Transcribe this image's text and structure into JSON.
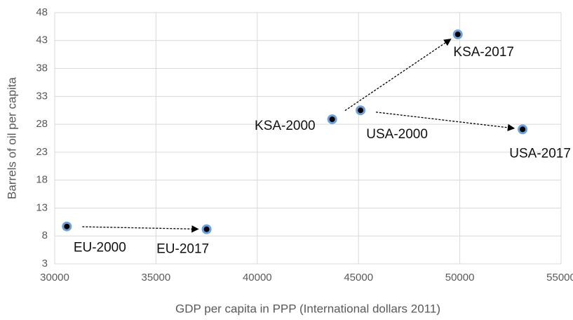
{
  "chart_data": {
    "type": "scatter",
    "x_label": "GDP per capita in PPP (International dollars 2011)",
    "y_label": "Barrels of oil per capita",
    "x": [
      30600,
      37500,
      43700,
      49900,
      45100,
      53100
    ],
    "values": [
      9.7,
      9.2,
      28.9,
      44.1,
      30.5,
      27.1
    ],
    "point_labels": [
      "EU-2000",
      "EU-2017",
      "KSA-2000",
      "KSA-2017",
      "USA-2000",
      "USA-2017"
    ],
    "color": "#6fa0d8",
    "xlim": [
      30000,
      55000
    ],
    "xticks": [
      30000,
      35000,
      40000,
      45000,
      50000,
      55000
    ],
    "ylim": [
      3,
      48
    ],
    "yticks": [
      3,
      8,
      13,
      18,
      23,
      28,
      33,
      38,
      43,
      48
    ],
    "grid": true
  }
}
